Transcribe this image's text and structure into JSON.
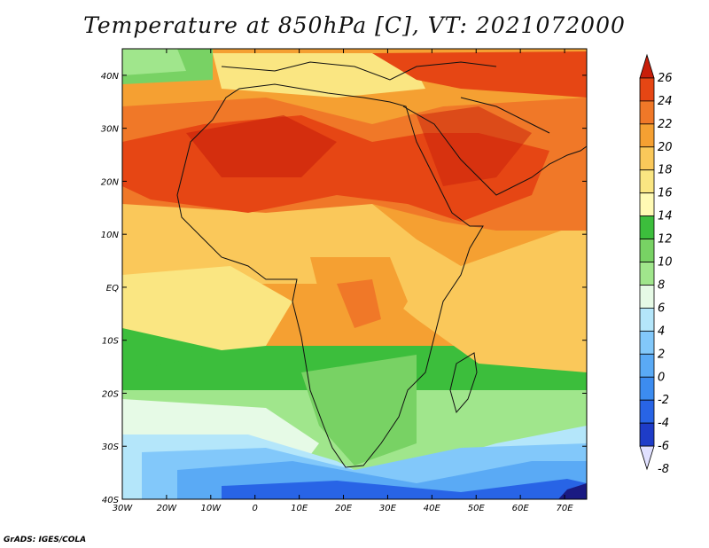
{
  "title": "Temperature at 850hPa [C], VT: 2021072000",
  "credit": "GrADS: IGES/COLA",
  "map": {
    "lon_range": [
      -30,
      75
    ],
    "lat_range": [
      -40,
      45
    ],
    "lon_ticks": [
      {
        "value": -30,
        "label": "30W"
      },
      {
        "value": -20,
        "label": "20W"
      },
      {
        "value": -10,
        "label": "10W"
      },
      {
        "value": 0,
        "label": "0"
      },
      {
        "value": 10,
        "label": "10E"
      },
      {
        "value": 20,
        "label": "20E"
      },
      {
        "value": 30,
        "label": "30E"
      },
      {
        "value": 40,
        "label": "40E"
      },
      {
        "value": 50,
        "label": "50E"
      },
      {
        "value": 60,
        "label": "60E"
      },
      {
        "value": 70,
        "label": "70E"
      }
    ],
    "lat_ticks": [
      {
        "value": 40,
        "label": "40N"
      },
      {
        "value": 30,
        "label": "30N"
      },
      {
        "value": 20,
        "label": "20N"
      },
      {
        "value": 10,
        "label": "10N"
      },
      {
        "value": 0,
        "label": "EQ"
      },
      {
        "value": -10,
        "label": "10S"
      },
      {
        "value": -20,
        "label": "20S"
      },
      {
        "value": -30,
        "label": "30S"
      },
      {
        "value": -40,
        "label": "40S"
      }
    ]
  },
  "colorbar": {
    "levels": [
      "-8",
      "-6",
      "-4",
      "-2",
      "0",
      "2",
      "4",
      "6",
      "8",
      "10",
      "12",
      "14",
      "16",
      "18",
      "20",
      "22",
      "24",
      "26"
    ],
    "colors": [
      "#1a1a82",
      "#1e3cc8",
      "#2864e6",
      "#3c8cf0",
      "#5aaaf5",
      "#82c8fa",
      "#b4e6fa",
      "#e6fae6",
      "#a0e68c",
      "#78d264",
      "#3cbe3c",
      "#fffab4",
      "#fae682",
      "#fac85a",
      "#f5a032",
      "#f07828",
      "#e64614",
      "#c81e0a"
    ]
  }
}
